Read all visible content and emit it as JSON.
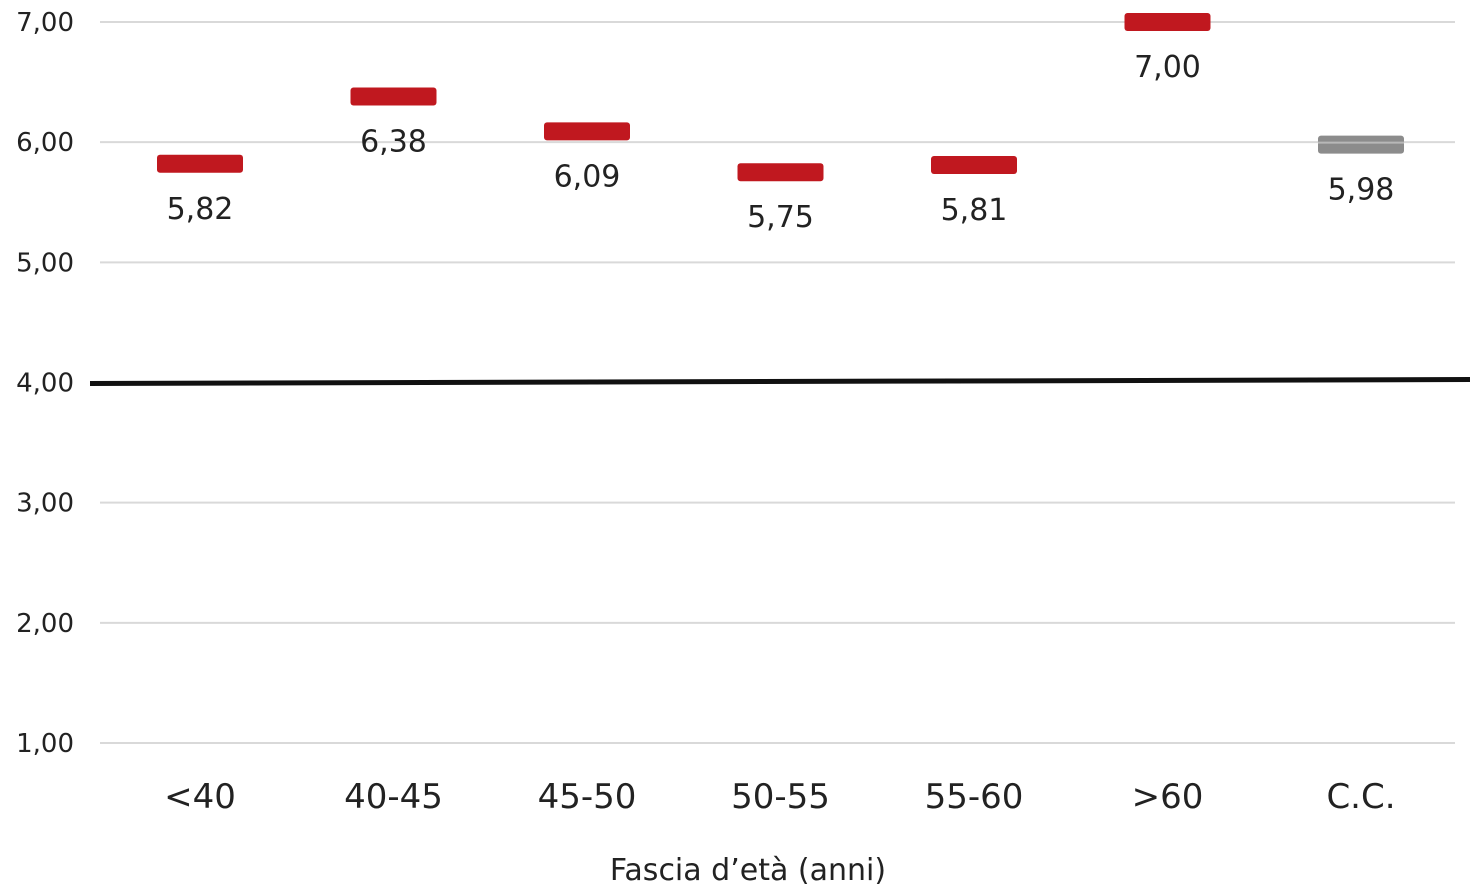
{
  "chart_data": {
    "type": "scatter",
    "categories": [
      "<40",
      "40-45",
      "45-50",
      "50-55",
      "55-60",
      ">60",
      "C.C."
    ],
    "values": [
      5.82,
      6.38,
      6.09,
      5.75,
      5.81,
      7.0,
      5.98
    ],
    "data_labels": [
      "5,82",
      "6,38",
      "6,09",
      "5,75",
      "5,81",
      "7,00",
      "5,98"
    ],
    "point_colors": [
      "#c0181f",
      "#c0181f",
      "#c0181f",
      "#c0181f",
      "#c0181f",
      "#c0181f",
      "#8c8c8c"
    ],
    "y_ticks": [
      1,
      2,
      3,
      4,
      5,
      6,
      7
    ],
    "y_tick_labels": [
      "1,00",
      "2,00",
      "3,00",
      "4,00",
      "5,00",
      "6,00",
      "7,00"
    ],
    "ylim": [
      1,
      7
    ],
    "reference_line": 4.0,
    "xlabel": "Fascia d’età (anni)",
    "ylabel": "",
    "title": "",
    "grid": true,
    "colors": {
      "accent": "#c0181f",
      "cc": "#8c8c8c",
      "grid": "#d9d9d9",
      "reference": "#111111"
    }
  }
}
